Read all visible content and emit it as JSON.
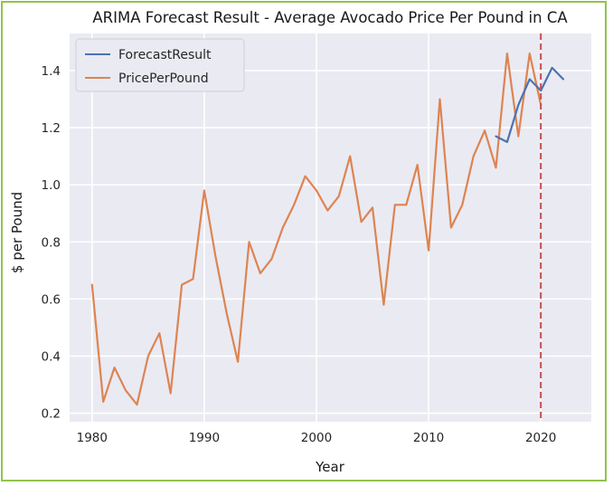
{
  "chart_data": {
    "type": "line",
    "title": "ARIMA Forecast Result - Average Avocado Price Per Pound in CA",
    "xlabel": "Year",
    "ylabel": "$ per Pound",
    "xlim": [
      1978,
      2024.5
    ],
    "ylim": [
      0.17,
      1.53
    ],
    "xticks": [
      1980,
      1990,
      2000,
      2010,
      2020
    ],
    "yticks": [
      0.2,
      0.4,
      0.6,
      0.8,
      1.0,
      1.2,
      1.4
    ],
    "ytick_labels": [
      "0.2",
      "0.4",
      "0.6",
      "0.8",
      "1.0",
      "1.2",
      "1.4"
    ],
    "grid": true,
    "legend_position": "top-left",
    "vline": {
      "x": 2020,
      "color": "#c44e52",
      "style": "dashed"
    },
    "series": [
      {
        "name": "ForecastResult",
        "color": "#4c72b0",
        "x": [
          2016,
          2017,
          2018,
          2019,
          2020,
          2021,
          2022
        ],
        "values": [
          1.17,
          1.15,
          1.28,
          1.37,
          1.33,
          1.41,
          1.37
        ]
      },
      {
        "name": "PricePerPound",
        "color": "#dd8452",
        "x": [
          1980,
          1981,
          1982,
          1983,
          1984,
          1985,
          1986,
          1987,
          1988,
          1989,
          1990,
          1991,
          1992,
          1993,
          1994,
          1995,
          1996,
          1997,
          1998,
          1999,
          2000,
          2001,
          2002,
          2003,
          2004,
          2005,
          2006,
          2007,
          2008,
          2009,
          2010,
          2011,
          2012,
          2013,
          2014,
          2015,
          2016,
          2017,
          2018,
          2019,
          2020
        ],
        "values": [
          0.65,
          0.24,
          0.36,
          0.28,
          0.23,
          0.4,
          0.48,
          0.27,
          0.65,
          0.67,
          0.98,
          0.75,
          0.55,
          0.38,
          0.8,
          0.69,
          0.74,
          0.85,
          0.93,
          1.03,
          0.98,
          0.91,
          0.96,
          1.1,
          0.87,
          0.92,
          0.58,
          0.93,
          0.93,
          1.07,
          0.77,
          1.3,
          0.85,
          0.93,
          1.1,
          1.19,
          1.06,
          1.46,
          1.17,
          1.46,
          1.28
        ]
      }
    ]
  }
}
